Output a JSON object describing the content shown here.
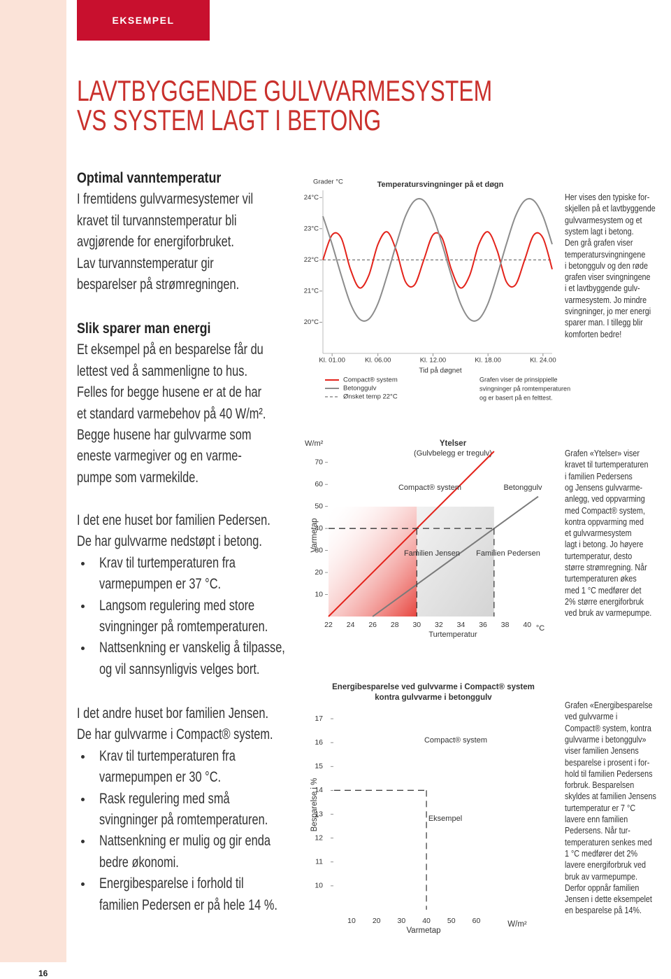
{
  "header": {
    "label": "EKSEMPEL",
    "title_lines": [
      "LAVTBYGGENDE GULVVARMESYSTEM",
      "VS SYSTEM LAGT I BETONG"
    ]
  },
  "left_column": [
    {
      "heading": "Optimal vanntemperatur",
      "lines": [
        "I fremtidens gulvvarmesystemer vil",
        "kravet til turvannstemperatur bli",
        "avgjørende for energiforbruket.",
        "Lav turvannstemperatur gir",
        "besparelser på strømregningen."
      ]
    },
    {
      "heading": "Slik sparer man energi",
      "lines": [
        "Et eksempel på en besparelse får du",
        "lettest ved å sammenligne to hus.",
        "Felles for begge husene er at de har",
        "et standard varmebehov på 40 W/m².",
        "Begge husene har gulvvarme som",
        "eneste varmegiver og en varme-",
        "pumpe som varmekilde."
      ]
    },
    {
      "lines": [
        "I det ene huset bor familien Pedersen.",
        "De har gulvvarme nedstøpt i betong."
      ],
      "bullets": [
        [
          "Krav til turtemperaturen fra",
          "varmepumpen er 37 °C."
        ],
        [
          "Langsom regulering med store",
          "svingninger på romtemperaturen."
        ],
        [
          "Nattsenkning er vanskelig å tilpasse,",
          "og vil sannsynligvis velges bort."
        ]
      ]
    },
    {
      "lines": [
        "I det andre huset bor familien Jensen.",
        "De har gulvvarme i Compact® system."
      ],
      "bullets": [
        [
          "Krav til turtemperaturen fra",
          "varmepumpen er 30 °C."
        ],
        [
          "Rask regulering med små",
          "svingninger på romtemperaturen."
        ],
        [
          "Nattsenkning er mulig og gir enda",
          "bedre økonomi."
        ],
        [
          "Energibesparelse i forhold til",
          "familien Pedersen er på hele 14 %."
        ]
      ]
    }
  ],
  "right_column": [
    {
      "lines": [
        "Her vises den typiske for-",
        "skjellen på et lavtbyggende",
        "gulvvarmesystem og et",
        "system lagt i betong.",
        "Den grå grafen viser",
        "temperatursvingningene",
        "i betonggulv og den røde",
        "grafen viser svingningene",
        "i et lavtbyggende gulv-",
        "varmesystem. Jo mindre",
        "svingninger, jo mer energi",
        "sparer man. I tillegg blir",
        "komforten bedre!"
      ]
    },
    {
      "lines": [
        "Grafen «Ytelser» viser",
        "kravet til turtemperaturen",
        "i familien Pedersens",
        "og Jensens gulvvarme-",
        "anlegg, ved oppvarming",
        "med Compact® system,",
        "kontra oppvarming med",
        "et gulvvarmesystem",
        "lagt i betong. Jo høyere",
        "turtemperatur, desto",
        "større strømregning. Når",
        "turtemperaturen økes",
        "med 1 °C medfører det",
        "2% større energiforbruk",
        "ved bruk av varmepumpe."
      ]
    },
    {
      "lines": [
        "Grafen «Energibesparelse",
        "ved gulvvarme i",
        "Compact® system, kontra",
        "gulvvarme i betonggulv»",
        "viser familien Jensens",
        "besparelse i prosent i for-",
        "hold til familien Pedersens",
        "forbruk. Besparelsen",
        "skyldes at familien Jensens",
        "turtemperatur er 7 °C",
        "lavere enn familien",
        "Pedersens. Når tur-",
        "temperaturen senkes med",
        "1 °C medfører det 2%",
        "lavere energiforbruk ved",
        "bruk av varmepumpe.",
        "Derfor oppnår familien",
        "Jensen i dette eksempelet",
        "en besparelse på 14%."
      ]
    }
  ],
  "page_number": 16,
  "chart_data": [
    {
      "type": "line",
      "title": "Temperatursvingninger på et døgn",
      "y_label": "Grader °C",
      "x_label": "Tid på døgnet",
      "smooth": true,
      "x": [
        0,
        1,
        2,
        3,
        4,
        5,
        6,
        7,
        8,
        9,
        10,
        11,
        12,
        13,
        14,
        15,
        16,
        17,
        18,
        19,
        20,
        21,
        22,
        23,
        24,
        25
      ],
      "series": [
        {
          "name": "Compact® system",
          "color": "#e3231b",
          "values": [
            22.0,
            22.8,
            22.7,
            21.7,
            21.1,
            21.5,
            22.5,
            22.9,
            22.3,
            21.3,
            21.2,
            22.0,
            22.8,
            22.7,
            21.7,
            21.1,
            21.5,
            22.5,
            22.9,
            22.3,
            21.3,
            21.2,
            22.0,
            22.8,
            22.7,
            21.7
          ]
        },
        {
          "name": "Betonggulv",
          "color": "#8c8c8c",
          "values": [
            23.4,
            22.5,
            21.5,
            20.6,
            20.1,
            20.1,
            20.6,
            21.5,
            22.5,
            23.4,
            23.9,
            23.9,
            23.4,
            22.5,
            21.5,
            20.6,
            20.1,
            20.1,
            20.6,
            21.5,
            22.5,
            23.4,
            23.9,
            23.9,
            23.4,
            22.5
          ]
        }
      ],
      "reference_line": {
        "name": "Ønsket temp 22°C",
        "value": 22,
        "color": "#555555",
        "dashed": true
      },
      "xlim": [
        0,
        25
      ],
      "ylim": [
        19,
        24.5
      ],
      "xticks": [
        {
          "value": 1,
          "label": "Kl. 01.00"
        },
        {
          "value": 6,
          "label": "Kl. 06.00"
        },
        {
          "value": 12,
          "label": "Kl. 12.00"
        },
        {
          "value": 18,
          "label": "Kl. 18.00"
        },
        {
          "value": 24,
          "label": "Kl. 24.00"
        }
      ],
      "yticks": [
        {
          "value": 20,
          "label": "20°C"
        },
        {
          "value": 21,
          "label": "21°C"
        },
        {
          "value": 22,
          "label": "22°C"
        },
        {
          "value": 23,
          "label": "23°C"
        },
        {
          "value": 24,
          "label": "24°C"
        }
      ],
      "note": [
        "Grafen viser de prinsippielle",
        "svingninger på romtemperaturen",
        "og er basert på en felttest."
      ]
    },
    {
      "type": "line",
      "title": "Ytelser",
      "subtitle": "(Gulvbelegg er tregulv)",
      "y_unit": "W/m²",
      "y_label": "Varmetap",
      "x_label": "Turtemperatur",
      "x_unit": "°C",
      "series": [
        {
          "name": "Compact® system",
          "color": "#e3231b",
          "x": [
            22,
            37
          ],
          "values": [
            0,
            75
          ]
        },
        {
          "name": "Betonggulv",
          "color": "#7a7a7a",
          "x": [
            26,
            41
          ],
          "values": [
            0,
            54.5
          ]
        }
      ],
      "markers": [
        {
          "label": "Familien Jensen",
          "x": 30,
          "y": 40,
          "color": "#222222"
        },
        {
          "label": "Familien Pedersen",
          "x": 37,
          "y": 40,
          "color": "#222222"
        }
      ],
      "xlim": [
        22,
        41
      ],
      "ylim": [
        0,
        75
      ],
      "xticks": [
        22,
        24,
        26,
        28,
        30,
        32,
        34,
        36,
        38,
        40
      ],
      "yticks": [
        10,
        20,
        30,
        40,
        50,
        60,
        70
      ]
    },
    {
      "type": "line",
      "title": [
        "Energibesparelse ved gulvvarme i Compact® system",
        "kontra gulvvarme i betonggulv"
      ],
      "series_label": "Compact® system",
      "y_label": "Besparelse i %",
      "x_label": "Varmetap",
      "x_unit": "W/m²",
      "series": [],
      "markers": [
        {
          "label": "Eksempel",
          "x": 40,
          "y": 14,
          "color": "#e3231b"
        }
      ],
      "xlim": [
        3,
        82
      ],
      "ylim": [
        9,
        17.5
      ],
      "xticks": [
        10,
        20,
        30,
        40,
        50,
        60
      ],
      "yticks": [
        10,
        11,
        12,
        13,
        14,
        15,
        16,
        17
      ]
    }
  ]
}
